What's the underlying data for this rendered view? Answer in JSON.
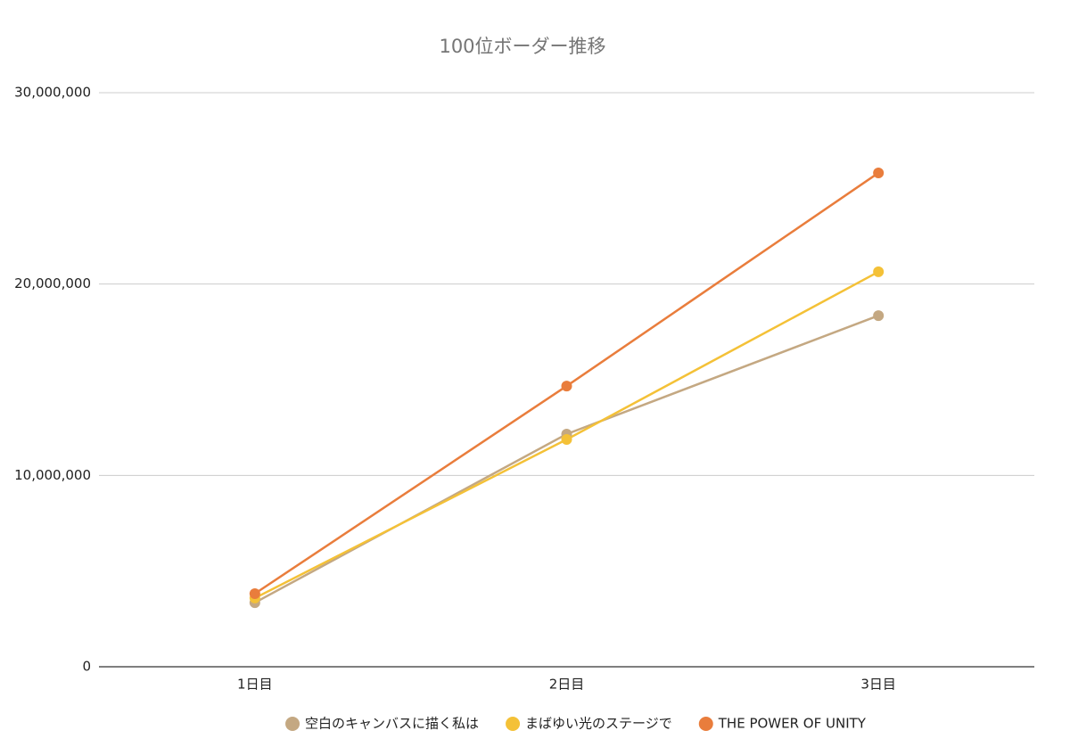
{
  "chart_data": {
    "type": "line",
    "title": "100位ボーダー推移",
    "categories": [
      "1日目",
      "2日目",
      "3日目"
    ],
    "series": [
      {
        "name": "空白のキャンバスに描く私は",
        "color": "#c4a882",
        "values": [
          3350000,
          12160000,
          18350000
        ]
      },
      {
        "name": "まばゆい光のステージで",
        "color": "#f4c137",
        "values": [
          3590000,
          11880000,
          20640000
        ]
      },
      {
        "name": "THE POWER OF UNITY",
        "color": "#e97d3c",
        "values": [
          3820000,
          14670000,
          25810000
        ]
      }
    ],
    "ylim": [
      0,
      30000000
    ],
    "yticks": [
      0,
      {
        "value": 10000000,
        "label": "10,000,000"
      },
      {
        "value": 20000000,
        "label": "20,000,000"
      },
      {
        "value": 30000000,
        "label": "30,000,000"
      }
    ],
    "grid": true,
    "legend": "bottom"
  }
}
